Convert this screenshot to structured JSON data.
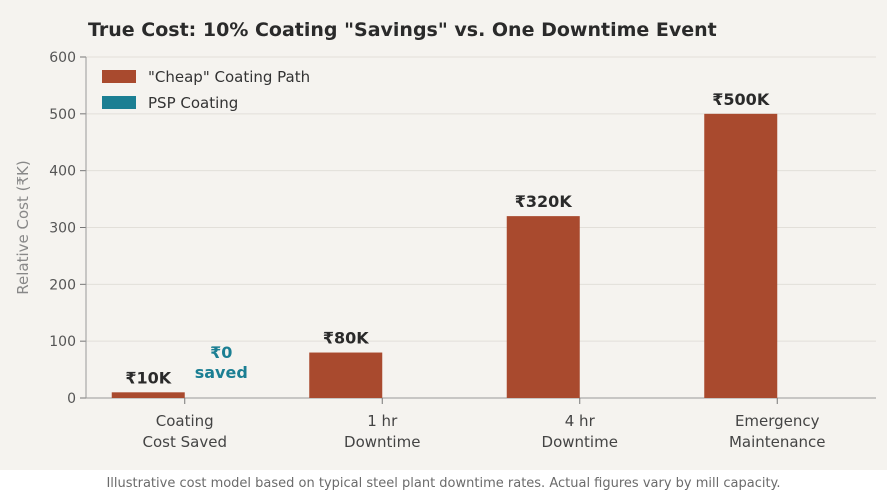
{
  "chart_data": {
    "type": "bar",
    "title": "True Cost: 10% Coating \"Savings\" vs. One Downtime Event",
    "xlabel": "",
    "ylabel": "Relative Cost (₹K)",
    "ylim": [
      0,
      600
    ],
    "yticks": [
      0,
      100,
      200,
      300,
      400,
      500,
      600
    ],
    "grid": "horizontal",
    "legend_position": "top-left",
    "categories": [
      [
        "Coating",
        "Cost Saved"
      ],
      [
        "1 hr",
        "Downtime"
      ],
      [
        "4 hr",
        "Downtime"
      ],
      [
        "Emergency",
        "Maintenance"
      ]
    ],
    "series": [
      {
        "name": "\"Cheap\" Coating Path",
        "color": "#a94a2e",
        "values": [
          10,
          80,
          320,
          500
        ],
        "labels": [
          "₹10K",
          "₹80K",
          "₹320K",
          "₹500K"
        ]
      },
      {
        "name": "PSP Coating",
        "color": "#1b7f93",
        "values": [
          0,
          0,
          0,
          0
        ],
        "labels": [
          [
            "₹0",
            "saved"
          ],
          "",
          "",
          ""
        ]
      }
    ]
  },
  "caption": "Illustrative cost model based on typical steel plant downtime rates. Actual figures vary by mill capacity."
}
